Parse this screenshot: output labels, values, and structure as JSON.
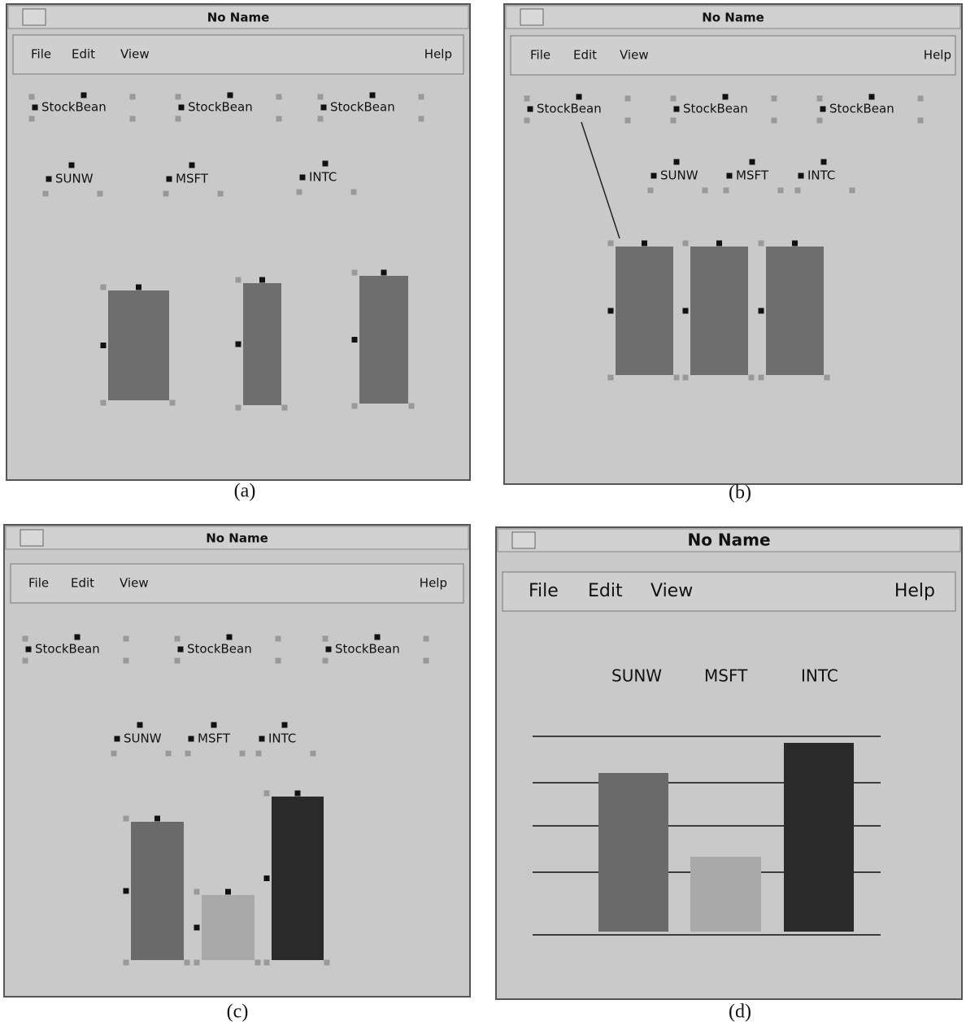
{
  "panels": [
    {
      "caption": "(a)",
      "window": {
        "title": "No Name",
        "menu": [
          "File",
          "Edit",
          "View"
        ],
        "help": "Help"
      },
      "beans": [
        "StockBean",
        "StockBean",
        "StockBean"
      ],
      "tickers": [
        "SUNW",
        "MSFT",
        "INTC"
      ]
    },
    {
      "caption": "(b)",
      "window": {
        "title": "No Name",
        "menu": [
          "File",
          "Edit",
          "View"
        ],
        "help": "Help"
      },
      "beans": [
        "StockBean",
        "StockBean",
        "StockBean"
      ],
      "tickers": [
        "SUNW",
        "MSFT",
        "INTC"
      ]
    },
    {
      "caption": "(c)",
      "window": {
        "title": "No Name",
        "menu": [
          "File",
          "Edit",
          "View"
        ],
        "help": "Help"
      },
      "beans": [
        "StockBean",
        "StockBean",
        "StockBean"
      ],
      "tickers": [
        "SUNW",
        "MSFT",
        "INTC"
      ]
    },
    {
      "caption": "(d)",
      "window": {
        "title": "No Name",
        "menu": [
          "File",
          "Edit",
          "View"
        ],
        "help": "Help"
      },
      "tickers": [
        "SUNW",
        "MSFT",
        "INTC"
      ]
    }
  ]
}
